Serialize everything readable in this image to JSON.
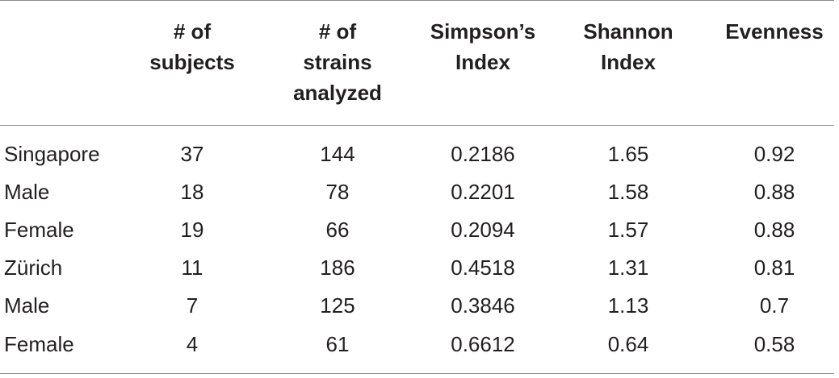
{
  "table": {
    "headers": [
      "",
      "# of\nsubjects",
      "# of\nstrains\nanalyzed",
      "Simpson’s\nIndex",
      "Shannon\nIndex",
      "Evenness"
    ],
    "rows": [
      [
        "Singapore",
        "37",
        "144",
        "0.2186",
        "1.65",
        "0.92"
      ],
      [
        "Male",
        "18",
        "78",
        "0.2201",
        "1.58",
        "0.88"
      ],
      [
        "Female",
        "19",
        "66",
        "0.2094",
        "1.57",
        "0.88"
      ],
      [
        "Zürich",
        "11",
        "186",
        "0.4518",
        "1.31",
        "0.81"
      ],
      [
        "Male",
        "7",
        "125",
        "0.3846",
        "1.13",
        "0.7"
      ],
      [
        "Female",
        "4",
        "61",
        "0.6612",
        "0.64",
        "0.58"
      ]
    ]
  }
}
